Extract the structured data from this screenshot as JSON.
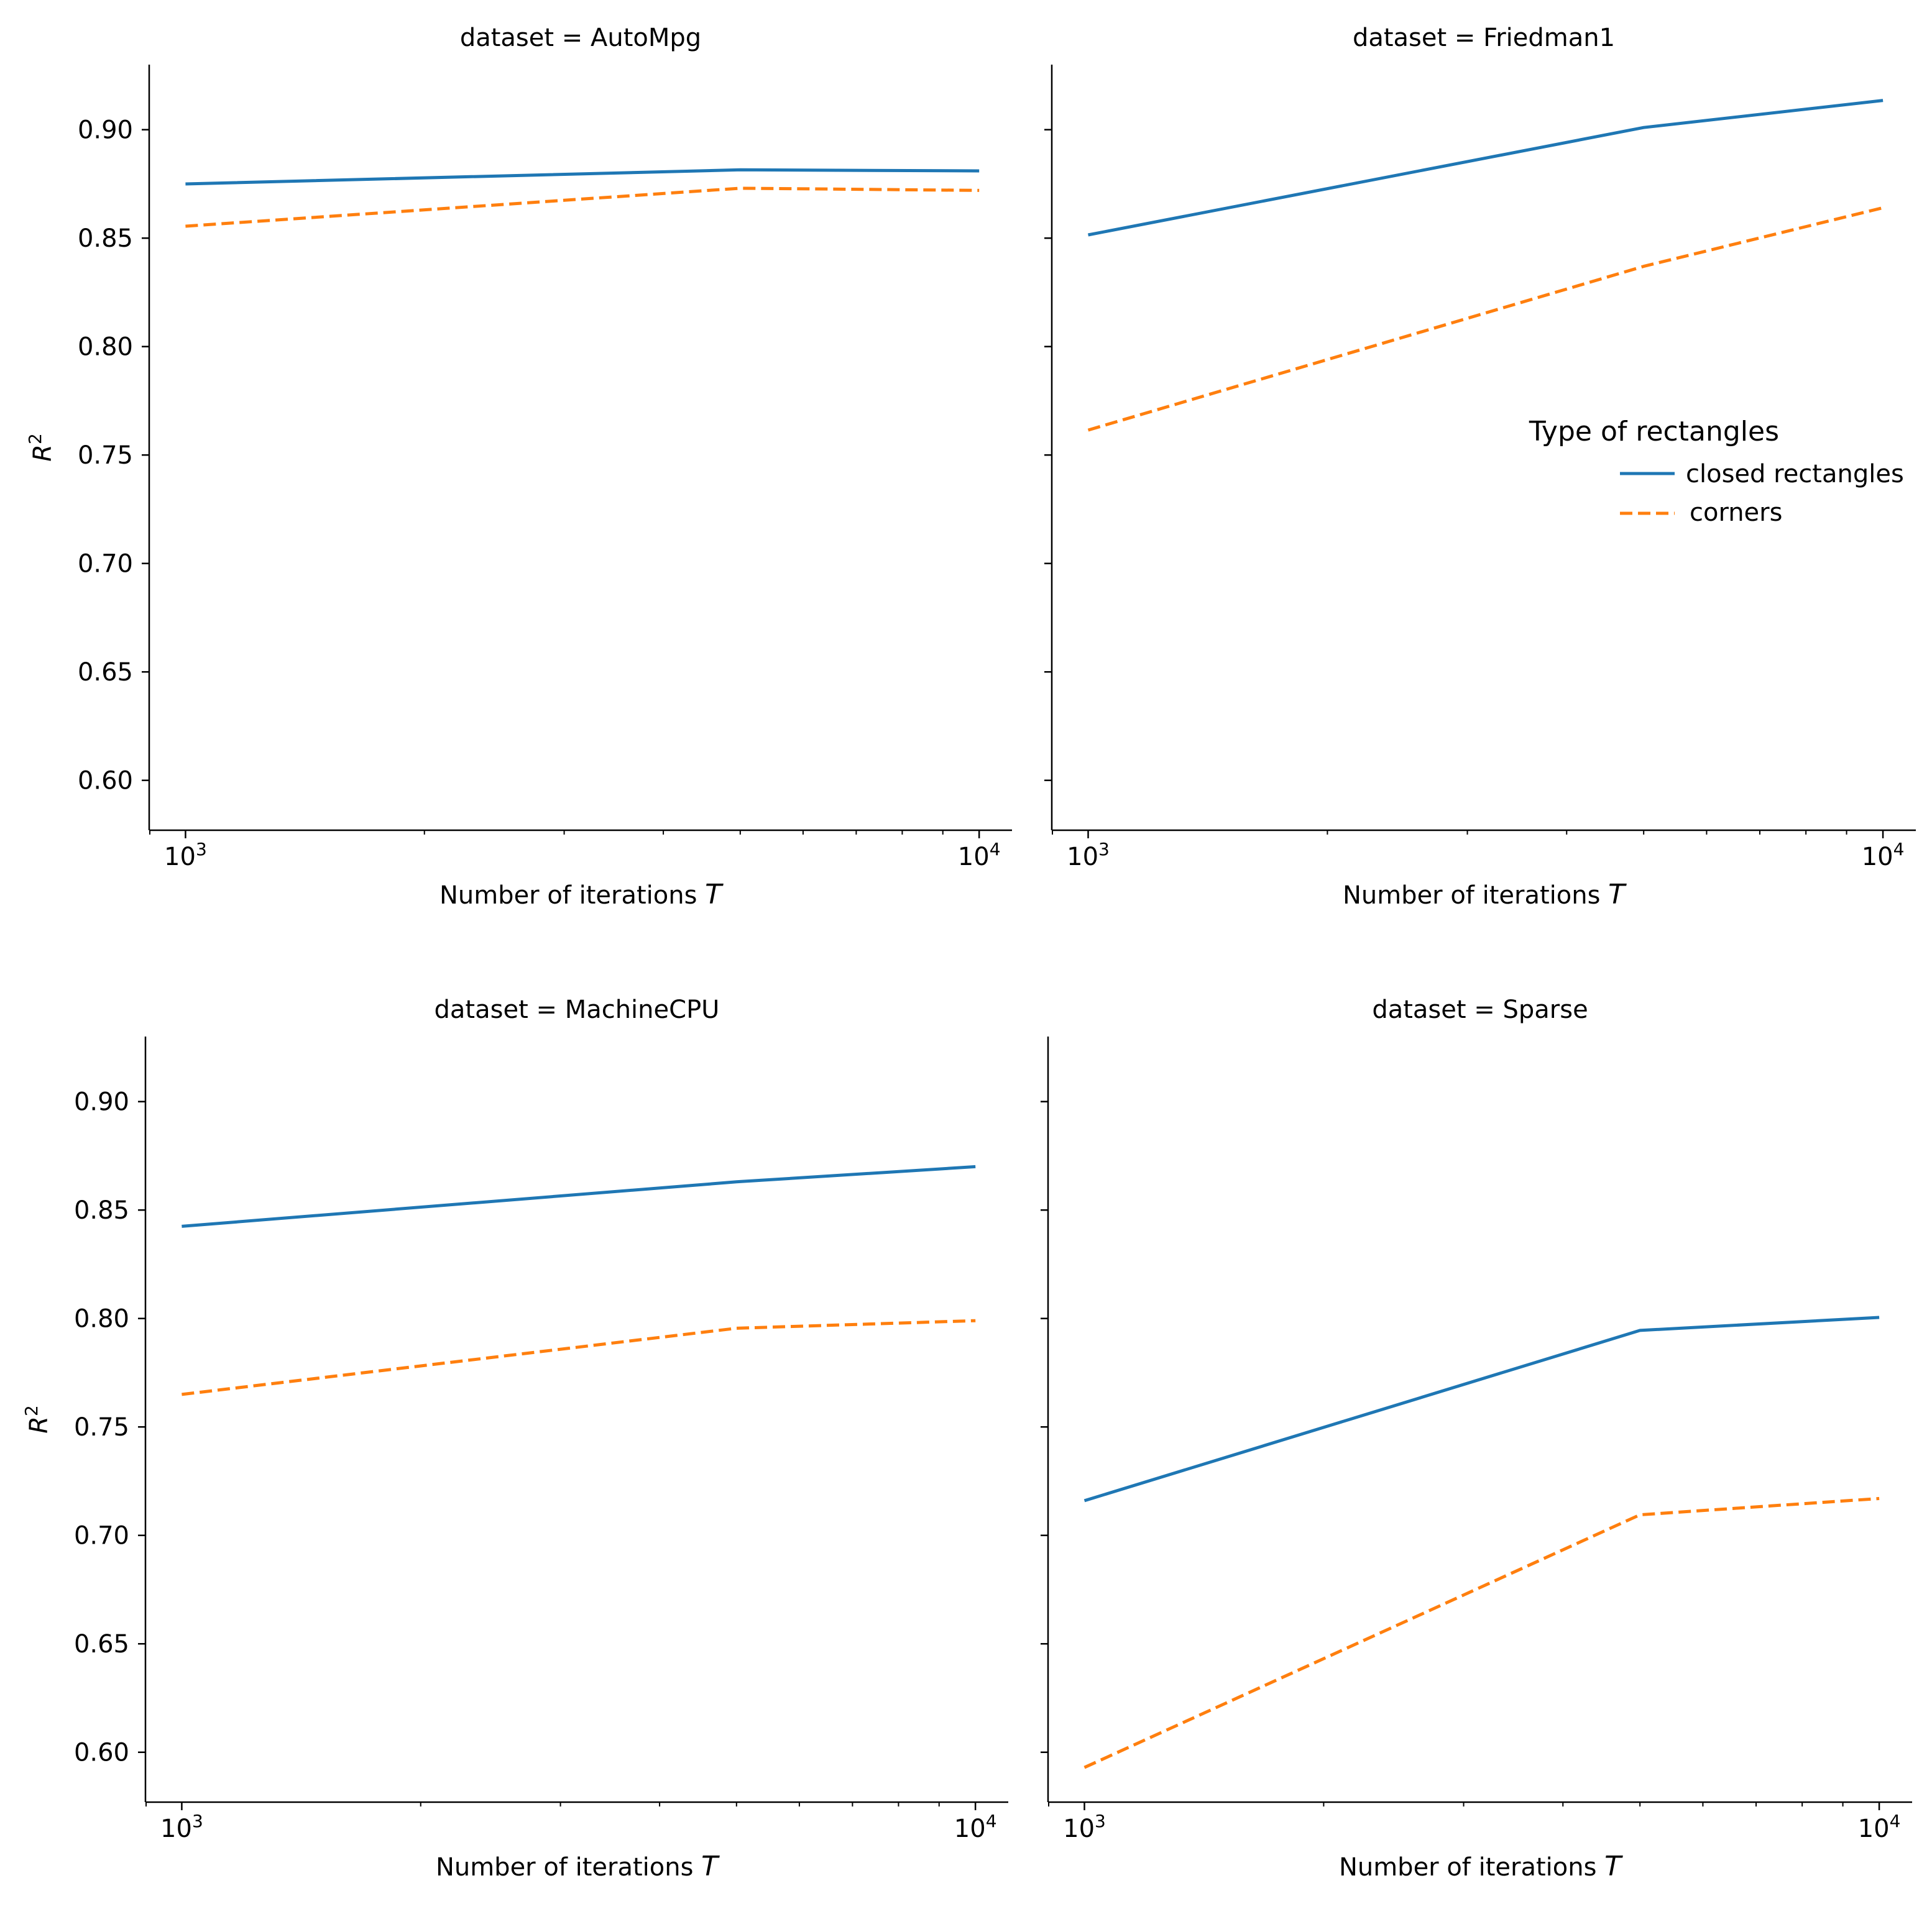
{
  "figure": {
    "y_tick_labels": [
      "0.60",
      "0.65",
      "0.70",
      "0.75",
      "0.80",
      "0.85",
      "0.90"
    ],
    "x_tick_labels": [
      {
        "base": "10",
        "exp": "3"
      },
      {
        "base": "10",
        "exp": "4"
      }
    ]
  },
  "legend": {
    "title": "Type of rectangles",
    "entries": [
      {
        "label": "closed rectangles",
        "color": "#1f77b4",
        "dash": "solid"
      },
      {
        "label": "corners",
        "color": "#ff7f0e",
        "dash": "dashed"
      }
    ]
  },
  "chart_data": [
    {
      "type": "line",
      "title": "dataset = AutoMpg",
      "xlabel": "Number of iterations",
      "xlabel_var": "T",
      "ylabel": "R",
      "ylabel_sup": "2",
      "xscale": "log",
      "xlim": [
        900,
        11000
      ],
      "ylim": [
        0.577,
        0.93
      ],
      "x": [
        1000,
        5000,
        10000
      ],
      "series": [
        {
          "name": "closed rectangles",
          "values": [
            0.875,
            0.8815,
            0.881
          ]
        },
        {
          "name": "corners",
          "values": [
            0.8555,
            0.873,
            0.872
          ]
        }
      ]
    },
    {
      "type": "line",
      "title": "dataset = Friedman1",
      "xlabel": "Number of iterations",
      "xlabel_var": "T",
      "ylabel": "",
      "ylabel_sup": "",
      "xscale": "log",
      "xlim": [
        900,
        11000
      ],
      "ylim": [
        0.577,
        0.93
      ],
      "x": [
        1000,
        5000,
        10000
      ],
      "series": [
        {
          "name": "closed rectangles",
          "values": [
            0.8515,
            0.901,
            0.9135
          ]
        },
        {
          "name": "corners",
          "values": [
            0.7615,
            0.837,
            0.864
          ]
        }
      ]
    },
    {
      "type": "line",
      "title": "dataset = MachineCPU",
      "xlabel": "Number of iterations",
      "xlabel_var": "T",
      "ylabel": "R",
      "ylabel_sup": "2",
      "xscale": "log",
      "xlim": [
        900,
        11000
      ],
      "ylim": [
        0.577,
        0.93
      ],
      "x": [
        1000,
        5000,
        10000
      ],
      "series": [
        {
          "name": "closed rectangles",
          "values": [
            0.8425,
            0.863,
            0.87
          ]
        },
        {
          "name": "corners",
          "values": [
            0.765,
            0.7955,
            0.799
          ]
        }
      ]
    },
    {
      "type": "line",
      "title": "dataset = Sparse",
      "xlabel": "Number of iterations",
      "xlabel_var": "T",
      "ylabel": "",
      "ylabel_sup": "",
      "xscale": "log",
      "xlim": [
        900,
        11000
      ],
      "ylim": [
        0.577,
        0.93
      ],
      "x": [
        1000,
        5000,
        10000
      ],
      "series": [
        {
          "name": "closed rectangles",
          "values": [
            0.716,
            0.7945,
            0.8005
          ]
        },
        {
          "name": "corners",
          "values": [
            0.593,
            0.7095,
            0.717
          ]
        }
      ]
    }
  ]
}
